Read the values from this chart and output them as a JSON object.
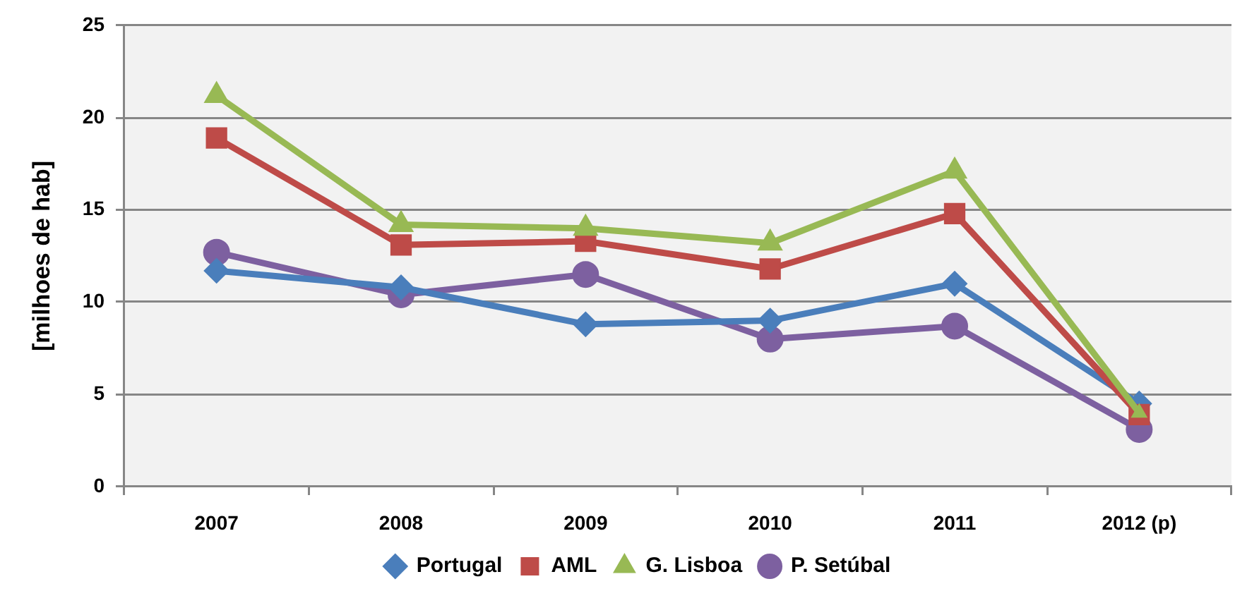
{
  "chart_data": {
    "type": "line",
    "ylabel": "[milhoes de hab]",
    "categories": [
      "2007",
      "2008",
      "2009",
      "2010",
      "2011",
      "2012 (p)"
    ],
    "series": [
      {
        "name": "Portugal",
        "color": "#4a7ebb",
        "marker": "diamond",
        "values": [
          11.7,
          10.8,
          8.8,
          9.0,
          11.0,
          4.5
        ]
      },
      {
        "name": "AML",
        "color": "#be4b48",
        "marker": "square",
        "values": [
          18.9,
          13.1,
          13.3,
          11.8,
          14.8,
          3.9
        ]
      },
      {
        "name": "G. Lisboa",
        "color": "#98b954",
        "marker": "triangle",
        "values": [
          21.2,
          14.2,
          14.0,
          13.2,
          17.1,
          4.0
        ]
      },
      {
        "name": "P. Setúbal",
        "color": "#7d60a0",
        "marker": "circle",
        "values": [
          12.7,
          10.4,
          11.5,
          8.0,
          8.7,
          3.1
        ]
      }
    ],
    "ylim": [
      0,
      25
    ],
    "yticks": [
      0,
      5,
      10,
      15,
      20,
      25
    ],
    "grid": "y",
    "legend": "bottom",
    "line_style": "solid"
  }
}
